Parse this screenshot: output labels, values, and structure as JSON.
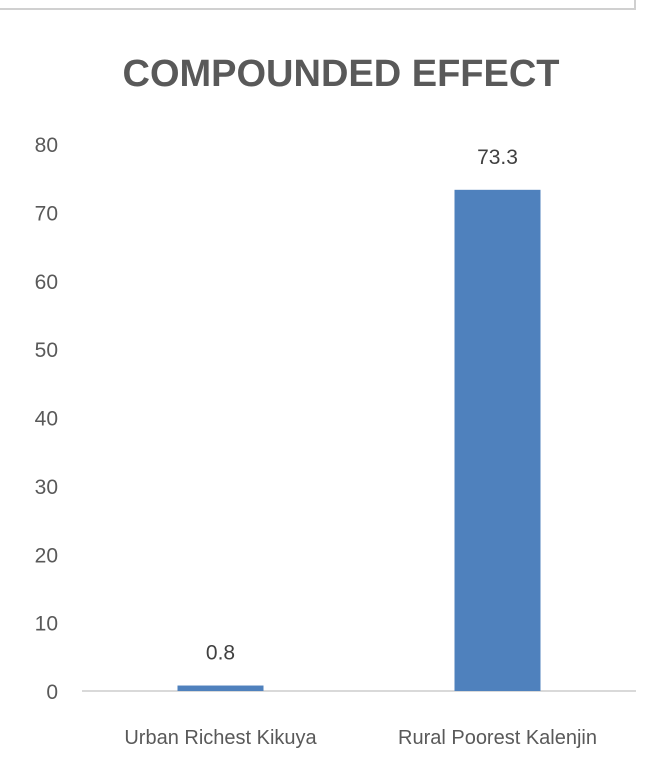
{
  "chart_data": {
    "type": "bar",
    "title": "COMPOUNDED EFFECT",
    "categories": [
      "Urban Richest Kikuya",
      "Rural Poorest Kalenjin"
    ],
    "values": [
      0.8,
      73.3
    ],
    "data_labels": [
      "0.8",
      "73.3"
    ],
    "xlabel": "",
    "ylabel": "",
    "ylim": [
      0,
      80
    ],
    "yticks": [
      0,
      10,
      20,
      30,
      40,
      50,
      60,
      70,
      80
    ],
    "grid": false,
    "legend": "none",
    "bar_color": "#4f81bd"
  }
}
